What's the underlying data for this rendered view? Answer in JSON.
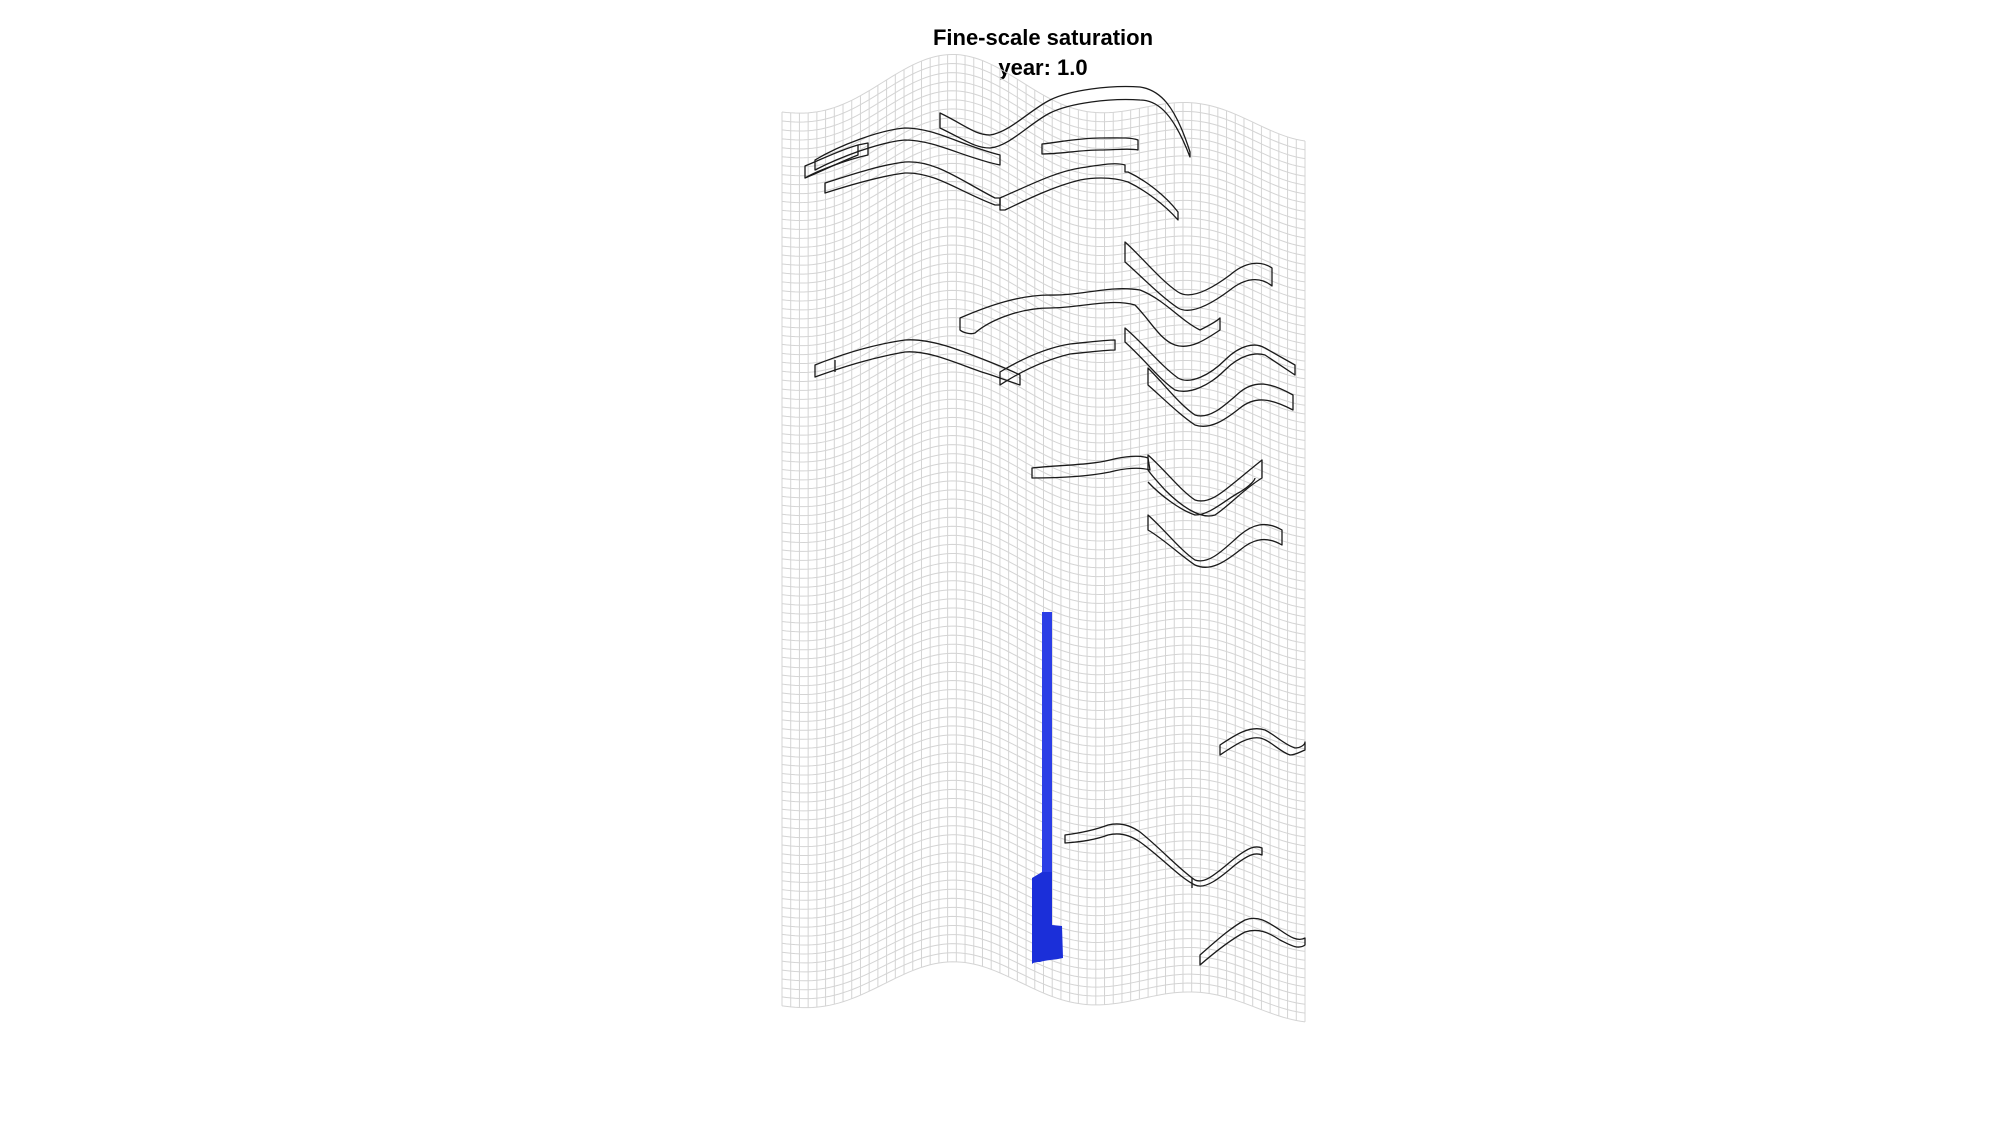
{
  "figure": {
    "title": "Fine-scale saturation",
    "subtitle": "year: 1.0"
  },
  "colors": {
    "background": "#ffffff",
    "grid_line": "#d4d4d4",
    "barrier_outline": "#1a1a1a",
    "plume_fill": "#2c3fe6",
    "plume_fill_dark": "#1b2fd9"
  },
  "plot": {
    "grid_cells_x": 60,
    "grid_cells_z": 100,
    "plume_saturation": 1.0
  }
}
